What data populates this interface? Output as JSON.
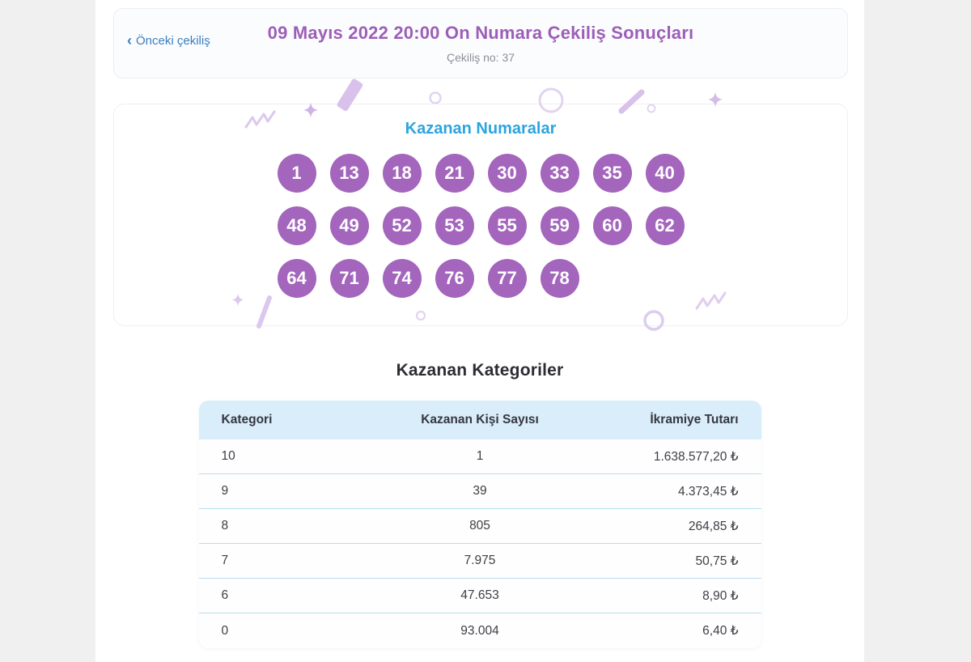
{
  "colors": {
    "accent_purple": "#9d5eb8",
    "ball_purple": "#a465bd",
    "link_blue": "#3b7ec0",
    "numbers_title_blue": "#2ba5df",
    "table_header_bg": "#d9eefa",
    "confetti_purple": "#d8c1eb"
  },
  "header": {
    "back_icon": "‹",
    "back_label": "Önceki çekiliş",
    "title": "09 Mayıs 2022 20:00 On Numara Çekiliş Sonuçları",
    "draw_no_label": "Çekiliş no: 37"
  },
  "numbers": {
    "title": "Kazanan Numaralar",
    "values": [
      "1",
      "13",
      "18",
      "21",
      "30",
      "33",
      "35",
      "40",
      "48",
      "49",
      "52",
      "53",
      "55",
      "59",
      "60",
      "62",
      "64",
      "71",
      "74",
      "76",
      "77",
      "78"
    ]
  },
  "categories": {
    "title": "Kazanan Kategoriler",
    "columns": [
      "Kategori",
      "Kazanan Kişi Sayısı",
      "İkramiye Tutarı"
    ],
    "rows": [
      {
        "kategori": "10",
        "kisi": "1",
        "ikramiye": "1.638.577,20 ₺"
      },
      {
        "kategori": "9",
        "kisi": "39",
        "ikramiye": "4.373,45 ₺"
      },
      {
        "kategori": "8",
        "kisi": "805",
        "ikramiye": "264,85 ₺"
      },
      {
        "kategori": "7",
        "kisi": "7.975",
        "ikramiye": "50,75 ₺"
      },
      {
        "kategori": "6",
        "kisi": "47.653",
        "ikramiye": "8,90 ₺"
      },
      {
        "kategori": "0",
        "kisi": "93.004",
        "ikramiye": "6,40 ₺"
      }
    ]
  }
}
